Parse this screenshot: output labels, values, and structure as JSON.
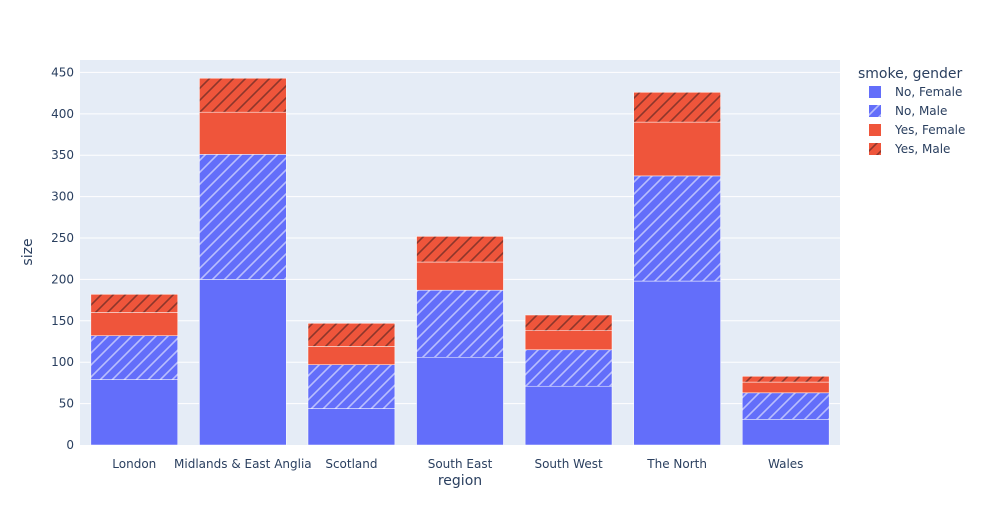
{
  "chart_data": {
    "type": "bar",
    "barmode": "stack",
    "categories": [
      "London",
      "Midlands & East Anglia",
      "Scotland",
      "South East",
      "South West",
      "The North",
      "Wales"
    ],
    "xlabel": "region",
    "ylabel": "size",
    "ylim": [
      0,
      465
    ],
    "yticks": [
      0,
      50,
      100,
      150,
      200,
      250,
      300,
      350,
      400,
      450
    ],
    "grid": true,
    "legend": {
      "title": "smoke, gender",
      "placement": "right"
    },
    "series": [
      {
        "name": "No, Female",
        "values": [
          79,
          200,
          44,
          106,
          71,
          198,
          31
        ],
        "color": "#636efa",
        "pattern": "none"
      },
      {
        "name": "No, Male",
        "values": [
          53,
          151,
          53,
          81,
          44,
          127,
          32
        ],
        "color": "#636efa",
        "pattern": "hatch"
      },
      {
        "name": "Yes, Female",
        "values": [
          28,
          51,
          22,
          34,
          23,
          65,
          13
        ],
        "color": "#ef553b",
        "pattern": "none"
      },
      {
        "name": "Yes, Male",
        "values": [
          22,
          41,
          28,
          31,
          19,
          36,
          7
        ],
        "color": "#ef553b",
        "pattern": "hatch"
      }
    ]
  }
}
